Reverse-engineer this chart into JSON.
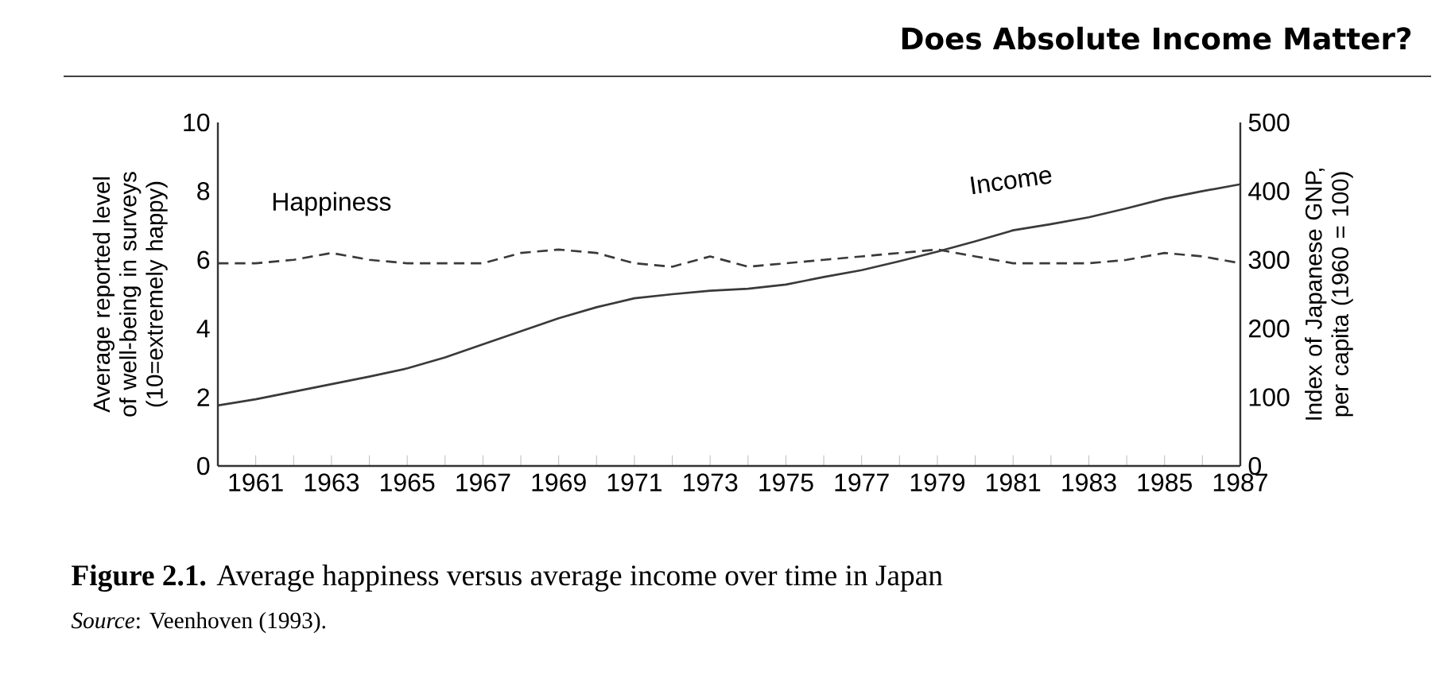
{
  "chart_data": {
    "type": "line",
    "title": "Does Absolute Income Matter?",
    "ylabel": "Average reported level of well-being in surveys (10=extremely happy)",
    "y2label": "Index of Japanese GNP, per capita (1960 = 100)",
    "annotations": [
      "**Figure 2.1.** Average happiness versus average income over time in Japan",
      "*Source*: Veenhoven (1993)."
    ],
    "x": [
      1960,
      1961,
      1962,
      1963,
      1964,
      1965,
      1966,
      1967,
      1968,
      1969,
      1970,
      1971,
      1972,
      1973,
      1974,
      1975,
      1976,
      1977,
      1978,
      1979,
      1980,
      1981,
      1982,
      1983,
      1984,
      1985,
      1986,
      1987
    ],
    "series": [
      {
        "name": "Happiness",
        "color": "#3a3a3a",
        "line_style": "dashed",
        "values": [
          5.9,
          5.9,
          6.0,
          6.2,
          6.0,
          5.9,
          5.9,
          5.9,
          6.2,
          6.3,
          6.2,
          5.9,
          5.8,
          6.1,
          5.8,
          5.9,
          6.0,
          6.1,
          6.2,
          6.3,
          6.1,
          5.9,
          5.9,
          5.9,
          6.0,
          6.2,
          6.1,
          5.9
        ]
      },
      {
        "name": "Income",
        "color": "#3a3a3a",
        "line_style": "solid",
        "axis": "y2",
        "values": [
          88,
          97,
          108,
          119,
          130,
          142,
          158,
          177,
          196,
          215,
          231,
          244,
          250,
          255,
          258,
          264,
          275,
          285,
          298,
          312,
          327,
          343,
          352,
          362,
          375,
          389,
          400,
          410
        ]
      }
    ],
    "xlim": [
      1960,
      1987
    ],
    "xticks": [
      1961,
      {
        "value": 1962,
        "label": null
      },
      1963,
      {
        "value": 1964,
        "label": null
      },
      1965,
      {
        "value": 1966,
        "label": null
      },
      1967,
      {
        "value": 1968,
        "label": null
      },
      1969,
      {
        "value": 1970,
        "label": null
      },
      1971,
      {
        "value": 1972,
        "label": null
      },
      1973,
      {
        "value": 1974,
        "label": null
      },
      1975,
      {
        "value": 1976,
        "label": null
      },
      1977,
      {
        "value": 1978,
        "label": null
      },
      1979,
      {
        "value": 1980,
        "label": null
      },
      1981,
      {
        "value": 1982,
        "label": null
      },
      1983,
      {
        "value": 1984,
        "label": null
      },
      1985,
      {
        "value": 1986,
        "label": null
      },
      1987
    ],
    "ylim": [
      0,
      10
    ],
    "yticks": [
      0,
      2,
      4,
      6,
      8,
      10
    ],
    "y2lim": [
      0,
      500
    ],
    "y2ticks": [
      0,
      100,
      200,
      300,
      400,
      500
    ],
    "marker": "none"
  }
}
